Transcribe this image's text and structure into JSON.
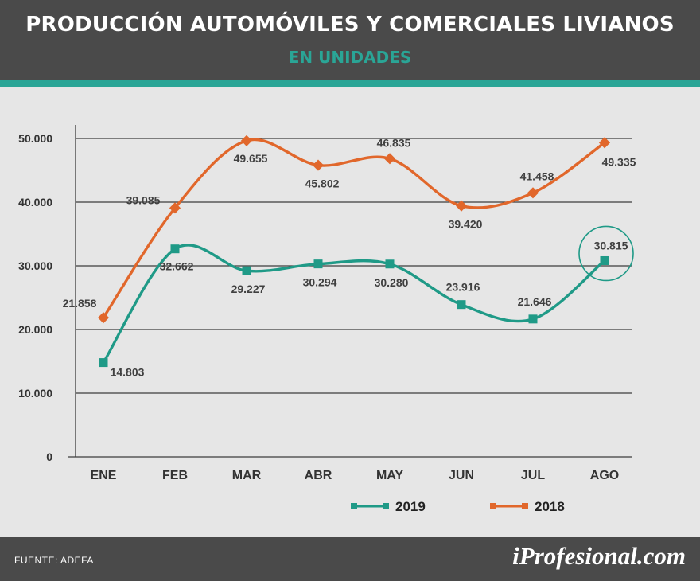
{
  "header": {
    "title": "PRODUCCIÓN AUTOMÓVILES Y COMERCIALES LIVIANOS",
    "subtitle": "EN UNIDADES"
  },
  "footer": {
    "source": "FUENTE: ADEFA",
    "brand": "iProfesional.com"
  },
  "colors": {
    "series_2019": "#1f9a87",
    "series_2018": "#e1672b",
    "header_bg": "#4a4a4a",
    "accent": "#2aa596"
  },
  "chart_data": {
    "type": "line",
    "title": "PRODUCCIÓN AUTOMÓVILES Y COMERCIALES LIVIANOS",
    "subtitle": "EN UNIDADES",
    "categories": [
      "ENE",
      "FEB",
      "MAR",
      "ABR",
      "MAY",
      "JUN",
      "JUL",
      "AGO"
    ],
    "y_ticks": [
      "0",
      "10.000",
      "20.000",
      "30.000",
      "40.000",
      "50.000"
    ],
    "ylim": [
      0,
      50000
    ],
    "grid": true,
    "legend_position": "bottom",
    "series": [
      {
        "name": "2019",
        "values": [
          14803,
          32662,
          29227,
          30294,
          30280,
          23916,
          21646,
          30815
        ],
        "labels": [
          "14.803",
          "32.662",
          "29.227",
          "30.294",
          "30.280",
          "23.916",
          "21.646",
          "30.815"
        ],
        "marker": "square",
        "highlight_last": true
      },
      {
        "name": "2018",
        "values": [
          21858,
          39085,
          49655,
          45802,
          46835,
          39420,
          41458,
          49335
        ],
        "labels": [
          "21.858",
          "39.085",
          "49.655",
          "45.802",
          "46.835",
          "39.420",
          "41.458",
          "49.335"
        ],
        "marker": "diamond"
      }
    ]
  }
}
